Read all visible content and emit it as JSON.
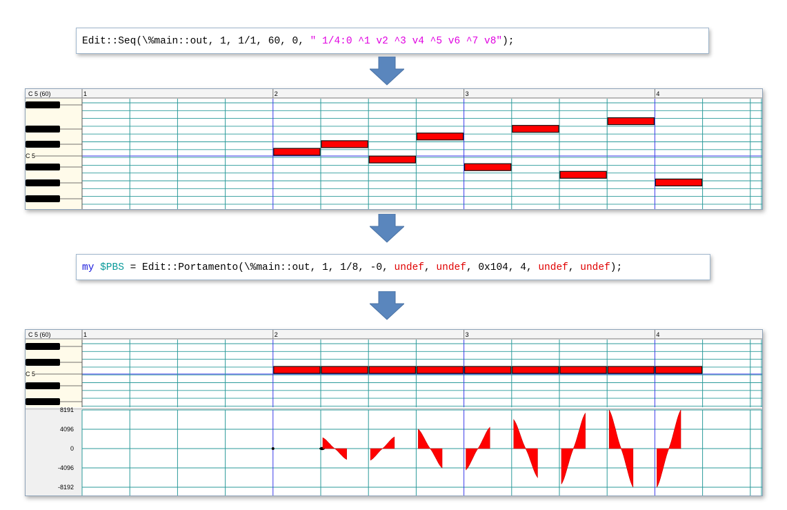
{
  "code1": {
    "prefix": "Edit::Seq(\\%main::out, 1, 1/1, 60, 0, ",
    "string": "\" 1/4:0 ^1 v2 ^3 v4 ^5 v6 ^7 v8\"",
    "suffix": ");"
  },
  "code2": {
    "kw": "my",
    "var": "$PBS",
    "mid": " = Edit::Portamento(\\%main::out, 1, 1/8, -0, ",
    "undef1": "undef",
    "sep1": ", ",
    "undef2": "undef",
    "sep2": ", 0x104, 4, ",
    "undef3": "undef",
    "sep3": ", ",
    "undef4": "undef",
    "suffix": ");"
  },
  "editor1": {
    "pitch_label": "C 5 (60)",
    "c5_label": "C 5",
    "measures": [
      "1",
      "2",
      "3",
      "4"
    ],
    "notes_offset": [
      0,
      1,
      -1,
      2,
      -2,
      3,
      -3,
      4,
      -4
    ]
  },
  "editor2": {
    "pitch_label": "C 5 (60)",
    "c5_label": "C 5",
    "measures": [
      "1",
      "2",
      "3",
      "4"
    ],
    "note_count": 9,
    "bend_labels": [
      "8191",
      "4096",
      "0",
      "-4096",
      "-8192"
    ]
  },
  "colors": {
    "note": "#ff0000",
    "grid_teal": "#2a9a9a",
    "grid_blue": "#3a3aea",
    "arrow": "#5a86bd",
    "keyboard_bg": "#fffbea"
  },
  "icons": {
    "arrow": "down-arrow-icon"
  }
}
